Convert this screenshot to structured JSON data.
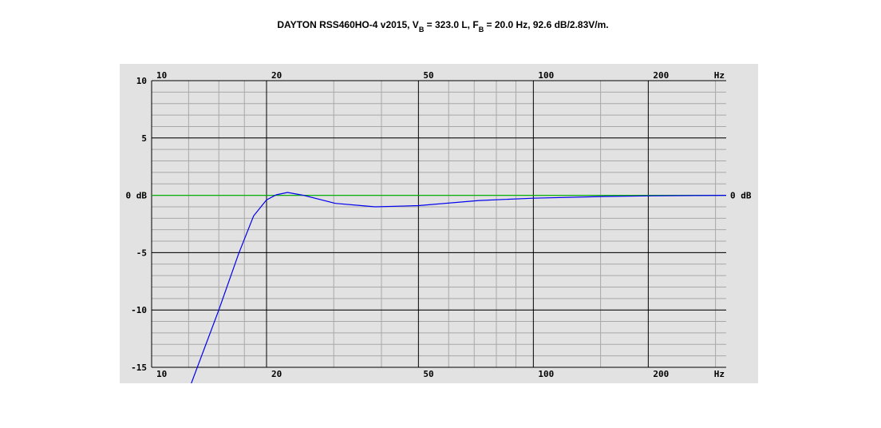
{
  "chart_data": {
    "type": "line",
    "title_parts": [
      "DAYTON RSS460HO-4 v2015, V",
      "B",
      " = 323.0 L, F",
      "B",
      " = 20.0 Hz,  92.6 dB/2.83V/m."
    ],
    "x_unit_label": "Hz",
    "reference_label": "0 dB",
    "reference_color": "#00cc00",
    "log_x": true,
    "grid": true,
    "xlim": [
      10,
      320
    ],
    "ylim": [
      -15,
      10
    ],
    "xticks": [
      10,
      20,
      50,
      100,
      200
    ],
    "x_minor_grid": [
      12.5,
      15,
      17.5,
      30,
      40,
      60,
      70,
      80,
      90,
      150,
      300
    ],
    "y_minor_step": 1,
    "yticks": [
      10,
      5,
      {
        "value": 0,
        "label": "0 dB"
      },
      -5,
      -10,
      -15
    ],
    "series": [
      {
        "color": "#0000ee",
        "x": [
          12.7,
          15,
          16.9,
          18.5,
          20,
          21.2,
          22.7,
          25,
          30.3,
          38.5,
          50,
          72,
          100,
          156,
          200,
          320
        ],
        "values": [
          -16.4,
          -10,
          -5.1,
          -1.8,
          -0.4,
          0.04,
          0.25,
          0,
          -0.7,
          -1,
          -0.9,
          -0.45,
          -0.25,
          -0.1,
          -0.05,
          0
        ]
      }
    ]
  }
}
